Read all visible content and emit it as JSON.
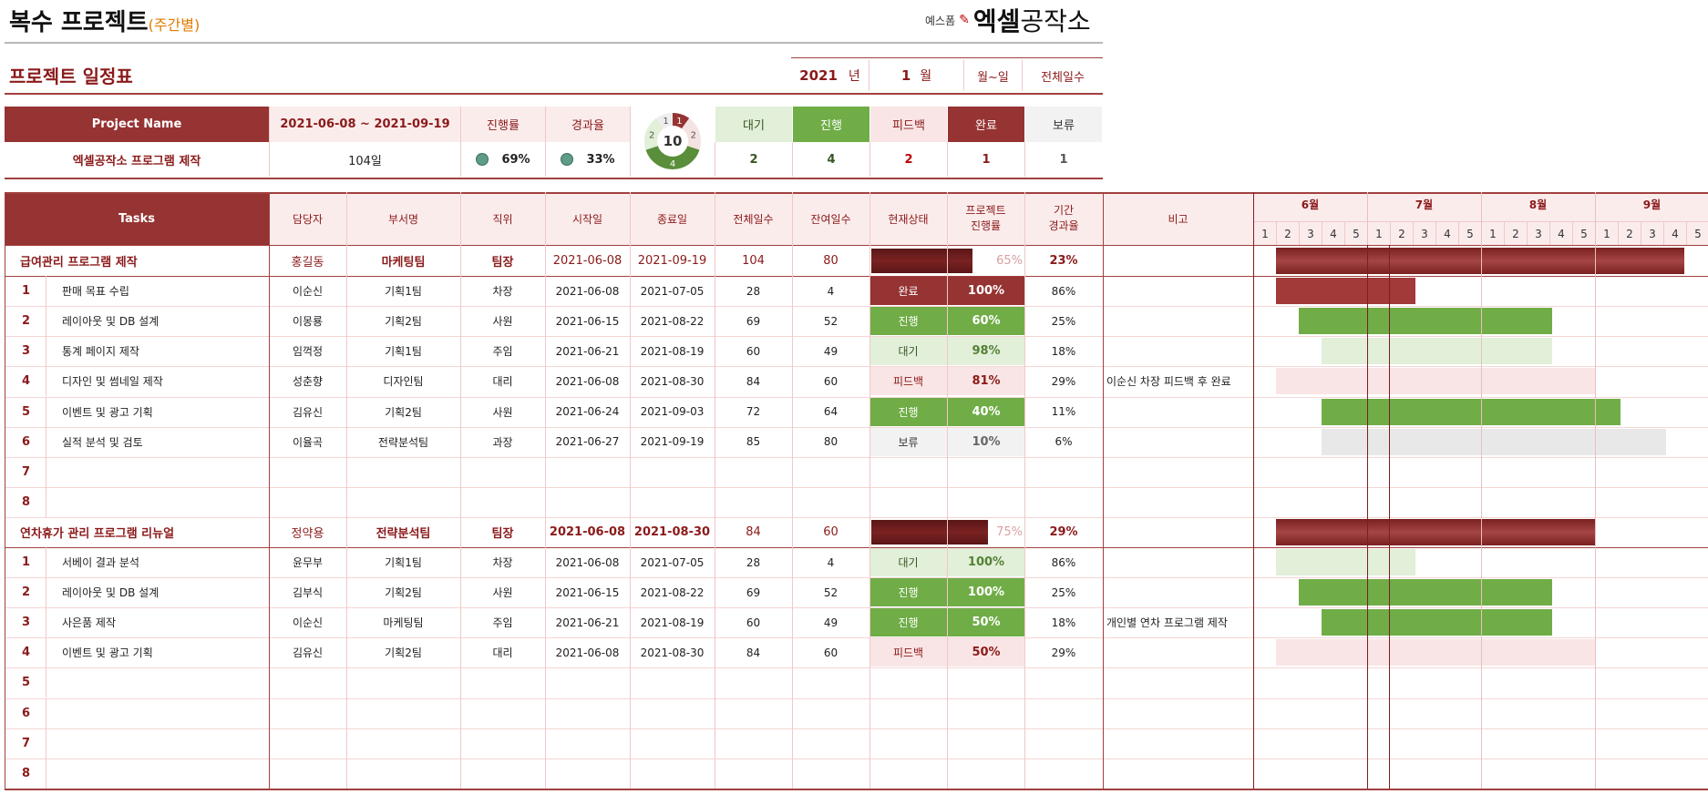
{
  "header": {
    "title": "복수 프로젝트",
    "subtitle": "(주간별)",
    "logo_small": "예스폼",
    "logo_bold": "엑셀",
    "logo_light": "공작소"
  },
  "schedule": {
    "title": "프로젝트 일정표",
    "year": "2021",
    "year_unit": "년",
    "month": "1",
    "month_unit": "월",
    "weekdays": "월~일",
    "total_days_label": "전체일수"
  },
  "summary": {
    "project_name_label": "Project Name",
    "period": "2021-06-08 ~ 2021-09-19",
    "progress_label": "진행률",
    "elapsed_label": "경과율",
    "project_name": "엑셀공작소 프로그램 제작",
    "days": "104일",
    "progress": "69%",
    "elapsed": "33%",
    "donut_total": "10",
    "donut_segments": [
      {
        "label": "1",
        "value": 1,
        "color": "#963333"
      },
      {
        "label": "2",
        "value": 2,
        "color": "#F5E3E3"
      },
      {
        "label": "4",
        "value": 4,
        "color": "#5A8E3A"
      },
      {
        "label": "2",
        "value": 2,
        "color": "#E2EFD9"
      },
      {
        "label": "1",
        "value": 1,
        "color": "#EEEEEE"
      }
    ],
    "statuses": [
      {
        "label": "대기",
        "count": "2",
        "bg": "#E2EFD9",
        "fg": "#375623",
        "count_fg": "#375623"
      },
      {
        "label": "진행",
        "count": "4",
        "bg": "#70AD47",
        "fg": "#ffffff",
        "count_fg": "#375623"
      },
      {
        "label": "피드백",
        "count": "2",
        "bg": "#F9E5E5",
        "fg": "#8B1A1A",
        "count_fg": "#C00000"
      },
      {
        "label": "완료",
        "count": "1",
        "bg": "#963333",
        "fg": "#ffffff",
        "count_fg": "#8B1A1A"
      },
      {
        "label": "보류",
        "count": "1",
        "bg": "#F2F2F2",
        "fg": "#333333",
        "count_fg": "#555555"
      }
    ]
  },
  "table": {
    "headers": {
      "tasks": "Tasks",
      "manager": "담당자",
      "dept": "부서명",
      "position": "직위",
      "start": "시작일",
      "end": "종료일",
      "total": "전체일수",
      "remaining": "잔여일수",
      "status": "현재상태",
      "progress_1": "프로젝트",
      "progress_2": "진행률",
      "elapsed_1": "기간",
      "elapsed_2": "경과율",
      "note": "비고"
    },
    "months": [
      "6월",
      "7월",
      "8월",
      "9월"
    ],
    "weeks": [
      "1",
      "2",
      "3",
      "4",
      "5",
      "1",
      "2",
      "3",
      "4",
      "5",
      "1",
      "2",
      "3",
      "4",
      "5",
      "1",
      "2",
      "3",
      "4",
      "5"
    ],
    "groups": [
      {
        "name": "급여관리 프로그램 제작",
        "manager": "홍길동",
        "dept": "마케팅팀",
        "position": "팀장",
        "start": "2021-06-08",
        "end": "2021-09-19",
        "total": "104",
        "remaining": "80",
        "progress": 0.65,
        "progress_text": "65%",
        "elapsed": "23%",
        "gantt": [
          1,
          18.9
        ],
        "tasks": [
          {
            "no": "1",
            "name": "판매 목표 수립",
            "manager": "이순신",
            "dept": "기획1팀",
            "position": "차장",
            "start": "2021-06-08",
            "end": "2021-07-05",
            "total": "28",
            "remaining": "4",
            "status": "완료",
            "progress": "100%",
            "elapsed": "86%",
            "note": "",
            "gantt": [
              1,
              7.1
            ]
          },
          {
            "no": "2",
            "name": "레이아웃 및 DB 설계",
            "manager": "이몽룡",
            "dept": "기획2팀",
            "position": "사원",
            "start": "2021-06-15",
            "end": "2021-08-22",
            "total": "69",
            "remaining": "52",
            "status": "진행",
            "progress": "60%",
            "elapsed": "25%",
            "note": "",
            "gantt": [
              2,
              13.1
            ]
          },
          {
            "no": "3",
            "name": "통계 페이지 제작",
            "manager": "임꺽정",
            "dept": "기획1팀",
            "position": "주임",
            "start": "2021-06-21",
            "end": "2021-08-19",
            "total": "60",
            "remaining": "49",
            "status": "대기",
            "progress": "98%",
            "elapsed": "18%",
            "note": "",
            "gantt": [
              3,
              13.1
            ]
          },
          {
            "no": "4",
            "name": "디자인 및 썸네일 제작",
            "manager": "성춘향",
            "dept": "디자인팀",
            "position": "대리",
            "start": "2021-06-08",
            "end": "2021-08-30",
            "total": "84",
            "remaining": "60",
            "status": "피드백",
            "progress": "81%",
            "elapsed": "29%",
            "note": "이순신 차장 피드백 후 완료",
            "gantt": [
              1,
              15
            ]
          },
          {
            "no": "5",
            "name": "이벤트 및 광고 기획",
            "manager": "김유신",
            "dept": "기획2팀",
            "position": "사원",
            "start": "2021-06-24",
            "end": "2021-09-03",
            "total": "72",
            "remaining": "64",
            "status": "진행",
            "progress": "40%",
            "elapsed": "11%",
            "note": "",
            "gantt": [
              3,
              16.1
            ]
          },
          {
            "no": "6",
            "name": "실적 분석 및 검토",
            "manager": "이율곡",
            "dept": "전략분석팀",
            "position": "과장",
            "start": "2021-06-27",
            "end": "2021-09-19",
            "total": "85",
            "remaining": "80",
            "status": "보류",
            "progress": "10%",
            "elapsed": "6%",
            "note": "",
            "gantt": [
              3,
              18.1
            ]
          },
          {
            "no": "7",
            "name": "",
            "manager": "",
            "dept": "",
            "position": "",
            "start": "",
            "end": "",
            "total": "",
            "remaining": "",
            "status": "",
            "progress": "",
            "elapsed": "",
            "note": "",
            "gantt": null
          },
          {
            "no": "8",
            "name": "",
            "manager": "",
            "dept": "",
            "position": "",
            "start": "",
            "end": "",
            "total": "",
            "remaining": "",
            "status": "",
            "progress": "",
            "elapsed": "",
            "note": "",
            "gantt": null
          }
        ]
      },
      {
        "name": "연차휴가 관리 프로그램 리뉴얼",
        "manager": "정약용",
        "dept": "전략분석팀",
        "position": "팀장",
        "start": "2021-06-08",
        "end": "2021-08-30",
        "total": "84",
        "remaining": "60",
        "progress": 0.75,
        "progress_text": "75%",
        "elapsed": "29%",
        "gantt": [
          1,
          15
        ],
        "tasks": [
          {
            "no": "1",
            "name": "서베이 결과 분석",
            "manager": "윤무부",
            "dept": "기획1팀",
            "position": "차장",
            "start": "2021-06-08",
            "end": "2021-07-05",
            "total": "28",
            "remaining": "4",
            "status": "대기",
            "progress": "100%",
            "elapsed": "86%",
            "note": "",
            "gantt": [
              1,
              7.1
            ]
          },
          {
            "no": "2",
            "name": "레이아웃 및 DB 설계",
            "manager": "김부식",
            "dept": "기획2팀",
            "position": "사원",
            "start": "2021-06-15",
            "end": "2021-08-22",
            "total": "69",
            "remaining": "52",
            "status": "진행",
            "progress": "100%",
            "elapsed": "25%",
            "note": "",
            "gantt": [
              2,
              13.1
            ]
          },
          {
            "no": "3",
            "name": "사은품 제작",
            "manager": "이순신",
            "dept": "마케팅팀",
            "position": "주임",
            "start": "2021-06-21",
            "end": "2021-08-19",
            "total": "60",
            "remaining": "49",
            "status": "진행",
            "progress": "50%",
            "elapsed": "18%",
            "note": "개인별 연차 프로그램 제작",
            "gantt": [
              3,
              13.1
            ]
          },
          {
            "no": "4",
            "name": "이벤트 및 광고 기획",
            "manager": "김유신",
            "dept": "기획2팀",
            "position": "대리",
            "start": "2021-06-08",
            "end": "2021-08-30",
            "total": "84",
            "remaining": "60",
            "status": "피드백",
            "progress": "50%",
            "elapsed": "29%",
            "note": "",
            "gantt": [
              1,
              15
            ]
          },
          {
            "no": "5",
            "name": "",
            "manager": "",
            "dept": "",
            "position": "",
            "start": "",
            "end": "",
            "total": "",
            "remaining": "",
            "status": "",
            "progress": "",
            "elapsed": "",
            "note": "",
            "gantt": null
          },
          {
            "no": "6",
            "name": "",
            "manager": "",
            "dept": "",
            "position": "",
            "start": "",
            "end": "",
            "total": "",
            "remaining": "",
            "status": "",
            "progress": "",
            "elapsed": "",
            "note": "",
            "gantt": null
          },
          {
            "no": "7",
            "name": "",
            "manager": "",
            "dept": "",
            "position": "",
            "start": "",
            "end": "",
            "total": "",
            "remaining": "",
            "status": "",
            "progress": "",
            "elapsed": "",
            "note": "",
            "gantt": null
          },
          {
            "no": "8",
            "name": "",
            "manager": "",
            "dept": "",
            "position": "",
            "start": "",
            "end": "",
            "total": "",
            "remaining": "",
            "status": "",
            "progress": "",
            "elapsed": "",
            "note": "",
            "gantt": null
          }
        ]
      }
    ]
  }
}
